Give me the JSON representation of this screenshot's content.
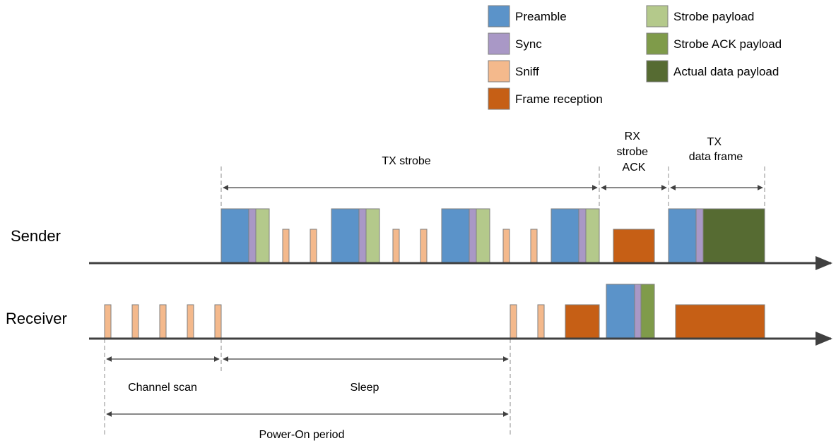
{
  "colors": {
    "preamble": "#5b93c9",
    "sync": "#a998c6",
    "sniff": "#f4b98c",
    "frame_reception": "#c65f15",
    "strobe_payload": "#b4c98b",
    "strobe_ack_payload": "#7f9b4a",
    "actual_data_payload": "#566b32",
    "axis": "#404040"
  },
  "legend": {
    "preamble": "Preamble",
    "sync": "Sync",
    "sniff": "Sniff",
    "frame_reception": "Frame reception",
    "strobe_payload": "Strobe payload",
    "strobe_ack_payload": "Strobe ACK payload",
    "actual_data_payload": "Actual data payload"
  },
  "lanes": {
    "sender": "Sender",
    "receiver": "Receiver"
  },
  "spans": {
    "tx_strobe": "TX strobe",
    "rx_strobe_ack": [
      "RX",
      "strobe",
      "ACK"
    ],
    "tx_data_frame": [
      "TX",
      "data frame"
    ],
    "channel_scan": "Channel scan",
    "sleep": "Sleep",
    "power_on_period": "Power-On period"
  }
}
